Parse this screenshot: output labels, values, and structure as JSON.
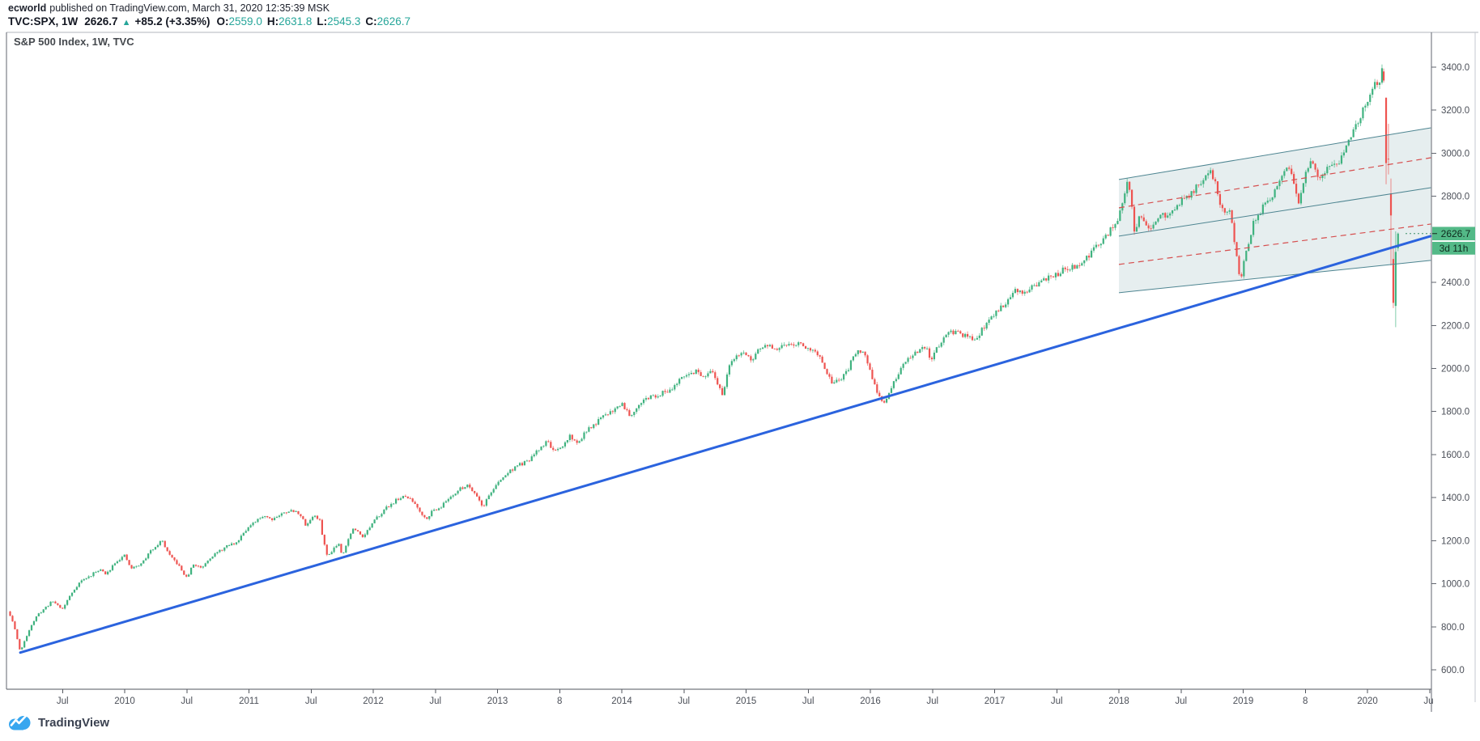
{
  "attribution": {
    "author": "ecworld",
    "text": "published on TradingView.com, March 31, 2020 12:35:39 MSK"
  },
  "legend": {
    "symbol": "TVC:SPX, 1W",
    "last": "2626.7",
    "direction_icon": "▲",
    "change": "+85.2 (+3.35%)",
    "ohlc": {
      "o_label": "O:",
      "o": "2559.0",
      "h_label": "H:",
      "h": "2631.8",
      "l_label": "L:",
      "l": "2545.3",
      "c_label": "C:",
      "c": "2626.7"
    }
  },
  "pane_title": "S&P 500 Index, 1W, TVC",
  "footer": {
    "brand": "TradingView"
  },
  "colors": {
    "up": "#3fb27f",
    "down": "#ee5350",
    "teal_value": "#26a69a",
    "label_bg": "#53b987",
    "label_text": "#0e2a1d",
    "trendline_blue": "#2b63de",
    "channel_line": "#4e8591",
    "channel_fill_rgba": "rgba(78,133,145,0.14)",
    "channel_dashed_red": "#d64f4f",
    "axis_text": "#4b4f58",
    "border_top": "#b2b5be",
    "border_side": "#62666f",
    "border_bottom": "#52565e",
    "border_far_right": "#c6c9d0"
  },
  "chart_data": {
    "type": "candlestick",
    "title": "S&P 500 Index weekly candles (TVC:SPX), 2009 - March 2020",
    "interval": "1W",
    "last_price": 2626.7,
    "last_price_label": "2626.7",
    "countdown": "3d 11h",
    "y_axis": {
      "side": "right",
      "ticks": [
        {
          "value": 600,
          "label": "600.0"
        },
        {
          "value": 800,
          "label": "800.0"
        },
        {
          "value": 1000,
          "label": "1000.0"
        },
        {
          "value": 1200,
          "label": "1200.0"
        },
        {
          "value": 1400,
          "label": "1400.0"
        },
        {
          "value": 1600,
          "label": "1600.0"
        },
        {
          "value": 1800,
          "label": "1800.0"
        },
        {
          "value": 2000,
          "label": "2000.0"
        },
        {
          "value": 2200,
          "label": "2200.0"
        },
        {
          "value": 2400,
          "label": "2400.0"
        },
        {
          "value": 2800,
          "label": "2800.0"
        },
        {
          "value": 3000,
          "label": "3000.0"
        },
        {
          "value": 3200,
          "label": "3200.0"
        },
        {
          "value": 3400,
          "label": "3400.0"
        }
      ]
    },
    "x_axis": {
      "ticks": [
        {
          "label": "Jul",
          "t": 2009.5
        },
        {
          "label": "2010",
          "t": 2010.0
        },
        {
          "label": "Jul",
          "t": 2010.5
        },
        {
          "label": "2011",
          "t": 2011.0
        },
        {
          "label": "Jul",
          "t": 2011.5
        },
        {
          "label": "2012",
          "t": 2012.0
        },
        {
          "label": "Jul",
          "t": 2012.5
        },
        {
          "label": "2013",
          "t": 2013.0
        },
        {
          "label": "8",
          "t": 2013.5
        },
        {
          "label": "2014",
          "t": 2014.0
        },
        {
          "label": "Jul",
          "t": 2014.5
        },
        {
          "label": "2015",
          "t": 2015.0
        },
        {
          "label": "Jul",
          "t": 2015.5
        },
        {
          "label": "2016",
          "t": 2016.0
        },
        {
          "label": "Jul",
          "t": 2016.5
        },
        {
          "label": "2017",
          "t": 2017.0
        },
        {
          "label": "Jul",
          "t": 2017.5
        },
        {
          "label": "2018",
          "t": 2018.0
        },
        {
          "label": "Jul",
          "t": 2018.5
        },
        {
          "label": "2019",
          "t": 2019.0
        },
        {
          "label": "8",
          "t": 2019.5
        },
        {
          "label": "2020",
          "t": 2020.0
        },
        {
          "label": "Jul",
          "t": 2020.5
        }
      ]
    },
    "trendline": {
      "from_t": 2009.16,
      "from_price": 680,
      "to_t": 2020.51,
      "to_price": 2615
    },
    "channel": {
      "t1": 2018.0,
      "t2": 2020.51,
      "top": [
        2878,
        3118
      ],
      "mid": [
        2615,
        2840
      ],
      "bottom": [
        2352,
        2502
      ]
    },
    "anchors": [
      [
        2009.04,
        885
      ],
      [
        2009.09,
        840
      ],
      [
        2009.13,
        760
      ],
      [
        2009.16,
        683
      ],
      [
        2009.2,
        740
      ],
      [
        2009.24,
        800
      ],
      [
        2009.3,
        855
      ],
      [
        2009.36,
        888
      ],
      [
        2009.42,
        920
      ],
      [
        2009.5,
        883
      ],
      [
        2009.56,
        945
      ],
      [
        2009.64,
        1010
      ],
      [
        2009.72,
        1035
      ],
      [
        2009.8,
        1070
      ],
      [
        2009.85,
        1040
      ],
      [
        2009.92,
        1100
      ],
      [
        2010.0,
        1130
      ],
      [
        2010.05,
        1070
      ],
      [
        2010.13,
        1090
      ],
      [
        2010.22,
        1160
      ],
      [
        2010.3,
        1202
      ],
      [
        2010.36,
        1130
      ],
      [
        2010.42,
        1095
      ],
      [
        2010.5,
        1025
      ],
      [
        2010.55,
        1090
      ],
      [
        2010.62,
        1075
      ],
      [
        2010.68,
        1120
      ],
      [
        2010.76,
        1150
      ],
      [
        2010.84,
        1180
      ],
      [
        2010.9,
        1190
      ],
      [
        2010.96,
        1245
      ],
      [
        2011.04,
        1280
      ],
      [
        2011.12,
        1320
      ],
      [
        2011.18,
        1300
      ],
      [
        2011.25,
        1320
      ],
      [
        2011.32,
        1340
      ],
      [
        2011.4,
        1330
      ],
      [
        2011.46,
        1270
      ],
      [
        2011.52,
        1320
      ],
      [
        2011.57,
        1290
      ],
      [
        2011.6,
        1200
      ],
      [
        2011.63,
        1125
      ],
      [
        2011.68,
        1165
      ],
      [
        2011.72,
        1190
      ],
      [
        2011.75,
        1135
      ],
      [
        2011.79,
        1190
      ],
      [
        2011.83,
        1255
      ],
      [
        2011.88,
        1240
      ],
      [
        2011.92,
        1220
      ],
      [
        2011.97,
        1260
      ],
      [
        2012.04,
        1315
      ],
      [
        2012.12,
        1360
      ],
      [
        2012.2,
        1395
      ],
      [
        2012.27,
        1405
      ],
      [
        2012.34,
        1370
      ],
      [
        2012.42,
        1300
      ],
      [
        2012.48,
        1340
      ],
      [
        2012.55,
        1360
      ],
      [
        2012.62,
        1405
      ],
      [
        2012.7,
        1440
      ],
      [
        2012.76,
        1460
      ],
      [
        2012.83,
        1415
      ],
      [
        2012.88,
        1355
      ],
      [
        2012.94,
        1420
      ],
      [
        2013.0,
        1465
      ],
      [
        2013.08,
        1515
      ],
      [
        2013.16,
        1550
      ],
      [
        2013.24,
        1565
      ],
      [
        2013.32,
        1615
      ],
      [
        2013.4,
        1665
      ],
      [
        2013.46,
        1610
      ],
      [
        2013.52,
        1630
      ],
      [
        2013.58,
        1690
      ],
      [
        2013.64,
        1650
      ],
      [
        2013.7,
        1700
      ],
      [
        2013.76,
        1730
      ],
      [
        2013.82,
        1760
      ],
      [
        2013.88,
        1790
      ],
      [
        2013.94,
        1810
      ],
      [
        2014.0,
        1840
      ],
      [
        2014.07,
        1780
      ],
      [
        2014.14,
        1840
      ],
      [
        2014.22,
        1865
      ],
      [
        2014.3,
        1880
      ],
      [
        2014.38,
        1900
      ],
      [
        2014.46,
        1940
      ],
      [
        2014.54,
        1975
      ],
      [
        2014.6,
        1990
      ],
      [
        2014.66,
        1950
      ],
      [
        2014.72,
        1985
      ],
      [
        2014.77,
        1930
      ],
      [
        2014.81,
        1880
      ],
      [
        2014.86,
        2000
      ],
      [
        2014.92,
        2060
      ],
      [
        2014.98,
        2080
      ],
      [
        2015.04,
        2030
      ],
      [
        2015.1,
        2090
      ],
      [
        2015.18,
        2105
      ],
      [
        2015.25,
        2085
      ],
      [
        2015.32,
        2110
      ],
      [
        2015.4,
        2120
      ],
      [
        2015.48,
        2100
      ],
      [
        2015.55,
        2090
      ],
      [
        2015.6,
        2040
      ],
      [
        2015.64,
        1975
      ],
      [
        2015.7,
        1930
      ],
      [
        2015.76,
        1950
      ],
      [
        2015.82,
        1990
      ],
      [
        2015.87,
        2070
      ],
      [
        2015.92,
        2085
      ],
      [
        2015.97,
        2050
      ],
      [
        2016.02,
        1935
      ],
      [
        2016.07,
        1875
      ],
      [
        2016.11,
        1840
      ],
      [
        2016.16,
        1900
      ],
      [
        2016.22,
        1965
      ],
      [
        2016.3,
        2050
      ],
      [
        2016.38,
        2080
      ],
      [
        2016.45,
        2095
      ],
      [
        2016.49,
        2030
      ],
      [
        2016.54,
        2100
      ],
      [
        2016.62,
        2170
      ],
      [
        2016.7,
        2165
      ],
      [
        2016.78,
        2145
      ],
      [
        2016.84,
        2130
      ],
      [
        2016.88,
        2165
      ],
      [
        2016.94,
        2210
      ],
      [
        2017.0,
        2260
      ],
      [
        2017.08,
        2300
      ],
      [
        2017.16,
        2360
      ],
      [
        2017.24,
        2355
      ],
      [
        2017.32,
        2385
      ],
      [
        2017.4,
        2410
      ],
      [
        2017.48,
        2430
      ],
      [
        2017.56,
        2460
      ],
      [
        2017.64,
        2470
      ],
      [
        2017.72,
        2500
      ],
      [
        2017.8,
        2555
      ],
      [
        2017.88,
        2600
      ],
      [
        2017.94,
        2650
      ],
      [
        2018.0,
        2700
      ],
      [
        2018.04,
        2790
      ],
      [
        2018.07,
        2872
      ],
      [
        2018.1,
        2762
      ],
      [
        2018.13,
        2620
      ],
      [
        2018.17,
        2730
      ],
      [
        2018.21,
        2680
      ],
      [
        2018.25,
        2640
      ],
      [
        2018.3,
        2670
      ],
      [
        2018.35,
        2720
      ],
      [
        2018.4,
        2700
      ],
      [
        2018.45,
        2735
      ],
      [
        2018.5,
        2780
      ],
      [
        2018.56,
        2800
      ],
      [
        2018.62,
        2840
      ],
      [
        2018.68,
        2885
      ],
      [
        2018.73,
        2915
      ],
      [
        2018.77,
        2880
      ],
      [
        2018.81,
        2760
      ],
      [
        2018.85,
        2725
      ],
      [
        2018.89,
        2745
      ],
      [
        2018.92,
        2630
      ],
      [
        2018.95,
        2510
      ],
      [
        2018.975,
        2400
      ],
      [
        2019.0,
        2480
      ],
      [
        2019.04,
        2580
      ],
      [
        2019.08,
        2670
      ],
      [
        2019.13,
        2720
      ],
      [
        2019.18,
        2780
      ],
      [
        2019.23,
        2800
      ],
      [
        2019.28,
        2850
      ],
      [
        2019.33,
        2900
      ],
      [
        2019.37,
        2935
      ],
      [
        2019.41,
        2840
      ],
      [
        2019.44,
        2770
      ],
      [
        2019.48,
        2840
      ],
      [
        2019.52,
        2940
      ],
      [
        2019.55,
        2990
      ],
      [
        2019.58,
        2930
      ],
      [
        2019.61,
        2870
      ],
      [
        2019.64,
        2900
      ],
      [
        2019.68,
        2925
      ],
      [
        2019.72,
        2960
      ],
      [
        2019.75,
        2940
      ],
      [
        2019.78,
        2975
      ],
      [
        2019.82,
        3005
      ],
      [
        2019.86,
        3080
      ],
      [
        2019.9,
        3115
      ],
      [
        2019.94,
        3150
      ],
      [
        2019.98,
        3230
      ],
      [
        2020.02,
        3270
      ],
      [
        2020.06,
        3320
      ],
      [
        2020.1,
        3330
      ],
      [
        2020.115,
        3380
      ]
    ],
    "final_weeks": [
      {
        "t": 2020.131,
        "o": 3380.0,
        "h": 3393.5,
        "l": 3328.5,
        "c": 3337.8
      },
      {
        "t": 2020.15,
        "o": 3257.6,
        "h": 3259.8,
        "l": 2855.8,
        "c": 2954.2
      },
      {
        "t": 2020.169,
        "o": 2974.3,
        "h": 3136.7,
        "l": 2901.5,
        "c": 2972.4
      },
      {
        "t": 2020.189,
        "o": 2813.5,
        "h": 2882.6,
        "l": 2478.9,
        "c": 2711.0
      },
      {
        "t": 2020.208,
        "o": 2508.6,
        "h": 2562.9,
        "l": 2280.5,
        "c": 2304.9
      },
      {
        "t": 2020.227,
        "o": 2290.7,
        "h": 2637.0,
        "l": 2191.9,
        "c": 2541.5
      },
      {
        "t": 2020.246,
        "o": 2559.0,
        "h": 2631.8,
        "l": 2545.3,
        "c": 2626.7
      }
    ]
  }
}
